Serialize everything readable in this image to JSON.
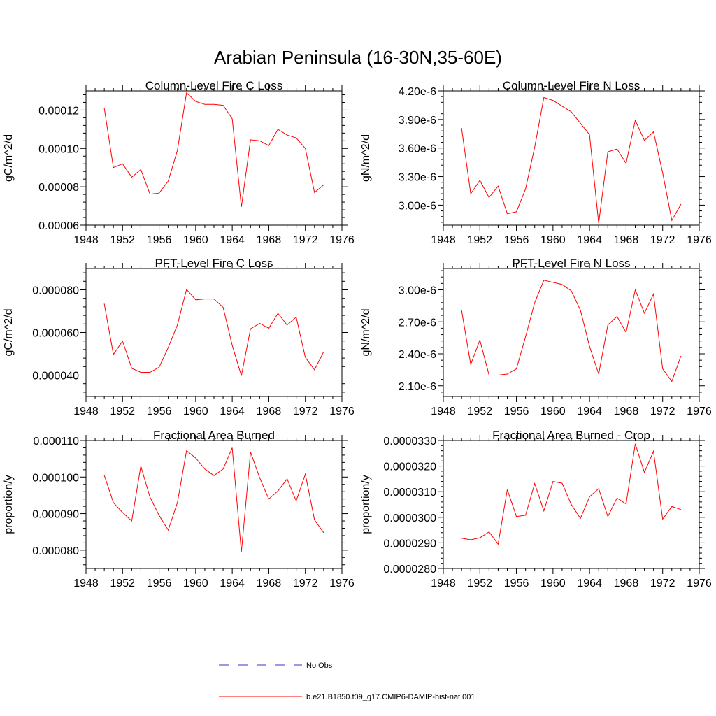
{
  "title": "Arabian Peninsula (16-30N,35-60E)",
  "chart_data": [
    {
      "type": "line",
      "title": "Column-Level Fire C Loss",
      "ylabel": "gC/m^2/d",
      "xlim": [
        1948,
        1976
      ],
      "xticks": [
        1948,
        1952,
        1956,
        1960,
        1964,
        1968,
        1972,
        1976
      ],
      "ylim": [
        6e-05,
        0.00013
      ],
      "yticks": [
        6e-05,
        8e-05,
        0.0001,
        0.00012
      ],
      "ytick_labels": [
        "0.00006",
        "0.00008",
        "0.00010",
        "0.00012"
      ],
      "x": [
        1950,
        1951,
        1952,
        1953,
        1954,
        1955,
        1956,
        1957,
        1958,
        1959,
        1960,
        1961,
        1962,
        1963,
        1964,
        1965,
        1966,
        1967,
        1968,
        1969,
        1970,
        1971,
        1972,
        1973,
        1974
      ],
      "series": [
        {
          "name": "b.e21.B1850.f09_g17.CMIP6-DAMIP-hist-nat.001",
          "color": "#ff0000",
          "values": [
            0.000121,
            9e-05,
            9.2e-05,
            8.5e-05,
            8.9e-05,
            7.62e-05,
            7.67e-05,
            8.3e-05,
            9.9e-05,
            0.000129,
            0.0001245,
            0.000123,
            0.000123,
            0.0001225,
            0.0001155,
            6.95e-05,
            0.0001045,
            0.000104,
            0.0001015,
            0.00011,
            0.000107,
            0.0001055,
            0.0001,
            7.7e-05,
            8.1e-05
          ]
        }
      ]
    },
    {
      "type": "line",
      "title": "Column-Level Fire N Loss",
      "ylabel": "gN/m^2/d",
      "xlim": [
        1948,
        1976
      ],
      "xticks": [
        1948,
        1952,
        1956,
        1960,
        1964,
        1968,
        1972,
        1976
      ],
      "ylim": [
        2.79e-06,
        4.2e-06
      ],
      "yticks": [
        3e-06,
        3.3e-06,
        3.6e-06,
        3.9e-06,
        4.2e-06
      ],
      "ytick_labels": [
        "3.00e-6",
        "3.30e-6",
        "3.60e-6",
        "3.90e-6",
        "4.20e-6"
      ],
      "x": [
        1950,
        1951,
        1952,
        1953,
        1954,
        1955,
        1956,
        1957,
        1958,
        1959,
        1960,
        1961,
        1962,
        1963,
        1964,
        1965,
        1966,
        1967,
        1968,
        1969,
        1970,
        1971,
        1972,
        1973,
        1974
      ],
      "series": [
        {
          "name": "b.e21.B1850.f09_g17.CMIP6-DAMIP-hist-nat.001",
          "color": "#ff0000",
          "values": [
            3.81e-06,
            3.12e-06,
            3.26e-06,
            3.08e-06,
            3.2e-06,
            2.91e-06,
            2.93e-06,
            3.17e-06,
            3.61e-06,
            4.13e-06,
            4.1e-06,
            4.04e-06,
            3.98e-06,
            3.86e-06,
            3.74e-06,
            2.81e-06,
            3.56e-06,
            3.59e-06,
            3.44e-06,
            3.89e-06,
            3.68e-06,
            3.77e-06,
            3.34e-06,
            2.84e-06,
            3.01e-06
          ]
        }
      ]
    },
    {
      "type": "line",
      "title": "PFT-Level Fire C Loss",
      "ylabel": "gC/m^2/d",
      "xlim": [
        1948,
        1976
      ],
      "xticks": [
        1948,
        1952,
        1956,
        1960,
        1964,
        1968,
        1972,
        1976
      ],
      "ylim": [
        3e-05,
        9e-05
      ],
      "yticks": [
        4e-05,
        6e-05,
        8e-05
      ],
      "ytick_labels": [
        "0.000040",
        "0.000060",
        "0.000080"
      ],
      "x": [
        1950,
        1951,
        1952,
        1953,
        1954,
        1955,
        1956,
        1957,
        1958,
        1959,
        1960,
        1961,
        1962,
        1963,
        1964,
        1965,
        1966,
        1967,
        1968,
        1969,
        1970,
        1971,
        1972,
        1973,
        1974
      ],
      "series": [
        {
          "name": "b.e21.B1850.f09_g17.CMIP6-DAMIP-hist-nat.001",
          "color": "#ff0000",
          "values": [
            7.35e-05,
            4.97e-05,
            5.6e-05,
            4.32e-05,
            4.13e-05,
            4.13e-05,
            4.37e-05,
            5.3e-05,
            6.35e-05,
            8.02e-05,
            7.53e-05,
            7.57e-05,
            7.57e-05,
            7.18e-05,
            5.4e-05,
            3.97e-05,
            6.17e-05,
            6.43e-05,
            6.2e-05,
            6.9e-05,
            6.35e-05,
            6.72e-05,
            4.83e-05,
            4.25e-05,
            5.1e-05
          ]
        }
      ]
    },
    {
      "type": "line",
      "title": "PFT-Level Fire N Loss",
      "ylabel": "gN/m^2/d",
      "xlim": [
        1948,
        1976
      ],
      "xticks": [
        1948,
        1952,
        1956,
        1960,
        1964,
        1968,
        1972,
        1976
      ],
      "ylim": [
        2e-06,
        3.2e-06
      ],
      "yticks": [
        2.1e-06,
        2.4e-06,
        2.7e-06,
        3e-06
      ],
      "ytick_labels": [
        "2.10e-6",
        "2.40e-6",
        "2.70e-6",
        "3.00e-6"
      ],
      "x": [
        1950,
        1951,
        1952,
        1953,
        1954,
        1955,
        1956,
        1957,
        1958,
        1959,
        1960,
        1961,
        1962,
        1963,
        1964,
        1965,
        1966,
        1967,
        1968,
        1969,
        1970,
        1971,
        1972,
        1973,
        1974
      ],
      "series": [
        {
          "name": "b.e21.B1850.f09_g17.CMIP6-DAMIP-hist-nat.001",
          "color": "#ff0000",
          "values": [
            2.81e-06,
            2.3e-06,
            2.53e-06,
            2.2e-06,
            2.2e-06,
            2.21e-06,
            2.26e-06,
            2.56e-06,
            2.88e-06,
            3.09e-06,
            3.07e-06,
            3.05e-06,
            2.99e-06,
            2.81e-06,
            2.47e-06,
            2.21e-06,
            2.67e-06,
            2.75e-06,
            2.6e-06,
            3e-06,
            2.78e-06,
            2.96e-06,
            2.26e-06,
            2.14e-06,
            2.38e-06
          ]
        }
      ]
    },
    {
      "type": "line",
      "title": "Fractional Area Burned",
      "ylabel": "proportion/y",
      "xlim": [
        1948,
        1976
      ],
      "xticks": [
        1948,
        1952,
        1956,
        1960,
        1964,
        1968,
        1972,
        1976
      ],
      "ylim": [
        7.5e-05,
        0.00011
      ],
      "yticks": [
        8e-05,
        9e-05,
        0.0001,
        0.00011
      ],
      "ytick_labels": [
        "0.000080",
        "0.000090",
        "0.000100",
        "0.000110"
      ],
      "x": [
        1950,
        1951,
        1952,
        1953,
        1954,
        1955,
        1956,
        1957,
        1958,
        1959,
        1960,
        1961,
        1962,
        1963,
        1964,
        1965,
        1966,
        1967,
        1968,
        1969,
        1970,
        1971,
        1972,
        1973,
        1974
      ],
      "series": [
        {
          "name": "b.e21.B1850.f09_g17.CMIP6-DAMIP-hist-nat.001",
          "color": "#ff0000",
          "values": [
            0.0001005,
            9.3e-05,
            9.03e-05,
            8.8e-05,
            0.000103,
            9.45e-05,
            8.95e-05,
            8.55e-05,
            9.3e-05,
            0.0001072,
            0.0001052,
            0.0001022,
            0.0001004,
            0.0001022,
            0.000108,
            7.95e-05,
            0.0001068,
            9.98e-05,
            9.4e-05,
            9.62e-05,
            9.95e-05,
            9.35e-05,
            0.0001008,
            8.83e-05,
            8.48e-05
          ]
        }
      ]
    },
    {
      "type": "line",
      "title": "Fractional Area Burned - Crop",
      "ylabel": "proportion/y",
      "xlim": [
        1948,
        1976
      ],
      "xticks": [
        1948,
        1952,
        1956,
        1960,
        1964,
        1968,
        1972,
        1976
      ],
      "ylim": [
        2.8e-05,
        3.3e-05
      ],
      "yticks": [
        2.8e-05,
        2.9e-05,
        3e-05,
        3.1e-05,
        3.2e-05,
        3.3e-05
      ],
      "ytick_labels": [
        "0.0000280",
        "0.0000290",
        "0.0000300",
        "0.0000310",
        "0.0000320",
        "0.0000330"
      ],
      "x": [
        1950,
        1951,
        1952,
        1953,
        1954,
        1955,
        1956,
        1957,
        1958,
        1959,
        1960,
        1961,
        1962,
        1963,
        1964,
        1965,
        1966,
        1967,
        1968,
        1969,
        1970,
        1971,
        1972,
        1973,
        1974
      ],
      "series": [
        {
          "name": "b.e21.B1850.f09_g17.CMIP6-DAMIP-hist-nat.001",
          "color": "#ff0000",
          "values": [
            2.918e-05,
            2.912e-05,
            2.92e-05,
            2.943e-05,
            2.895e-05,
            3.108e-05,
            3.003e-05,
            3.008e-05,
            3.132e-05,
            3.025e-05,
            3.14e-05,
            3.133e-05,
            3.05e-05,
            2.996e-05,
            3.08e-05,
            3.112e-05,
            3.003e-05,
            3.075e-05,
            3.052e-05,
            3.287e-05,
            3.175e-05,
            3.258e-05,
            2.993e-05,
            3.042e-05,
            3.03e-05
          ]
        }
      ]
    }
  ],
  "legend": [
    {
      "label": "No Obs",
      "color": "#3333cc",
      "style": "dashed"
    },
    {
      "label": "b.e21.B1850.f09_g17.CMIP6-DAMIP-hist-nat.001",
      "color": "#ff0000",
      "style": "solid"
    }
  ]
}
